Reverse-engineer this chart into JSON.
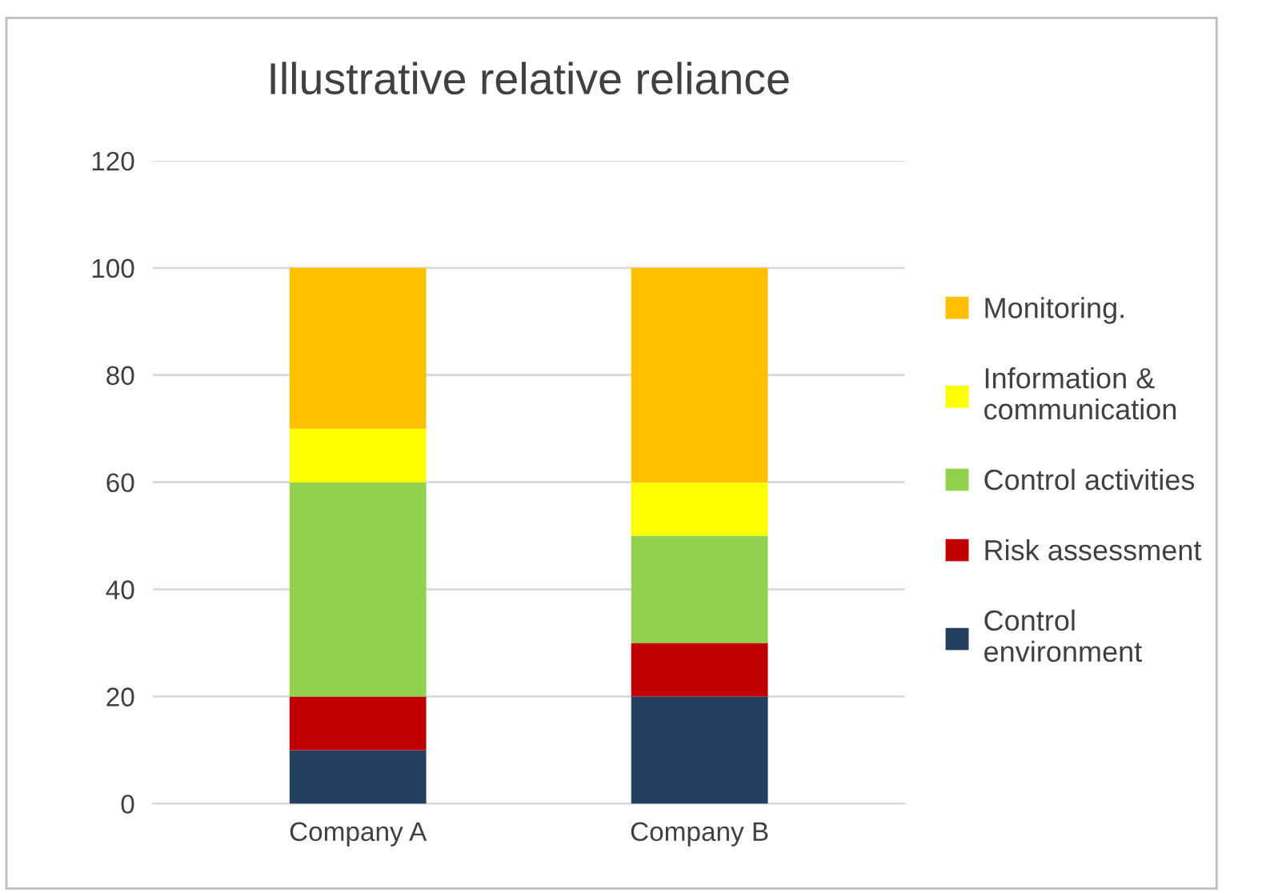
{
  "chart_data": {
    "type": "bar",
    "title": "Illustrative relative reliance",
    "categories": [
      "Company A",
      "Company B"
    ],
    "stacked": true,
    "series": [
      {
        "name": "Control\nenvironment",
        "color": "#243f60",
        "values": [
          10,
          20
        ]
      },
      {
        "name": "Risk assessment",
        "color": "#c00000",
        "values": [
          10,
          10
        ]
      },
      {
        "name": "Control activities",
        "color": "#92d050",
        "values": [
          40,
          20
        ]
      },
      {
        "name": "Information &\ncommunication",
        "color": "#ffff00",
        "values": [
          10,
          10
        ]
      },
      {
        "name": "Monitoring.",
        "color": "#ffc000",
        "values": [
          30,
          40
        ]
      }
    ],
    "ylim": [
      0,
      120
    ],
    "yticks": [
      0,
      20,
      40,
      60,
      80,
      100,
      120
    ],
    "grid": "y",
    "legend": "right"
  }
}
